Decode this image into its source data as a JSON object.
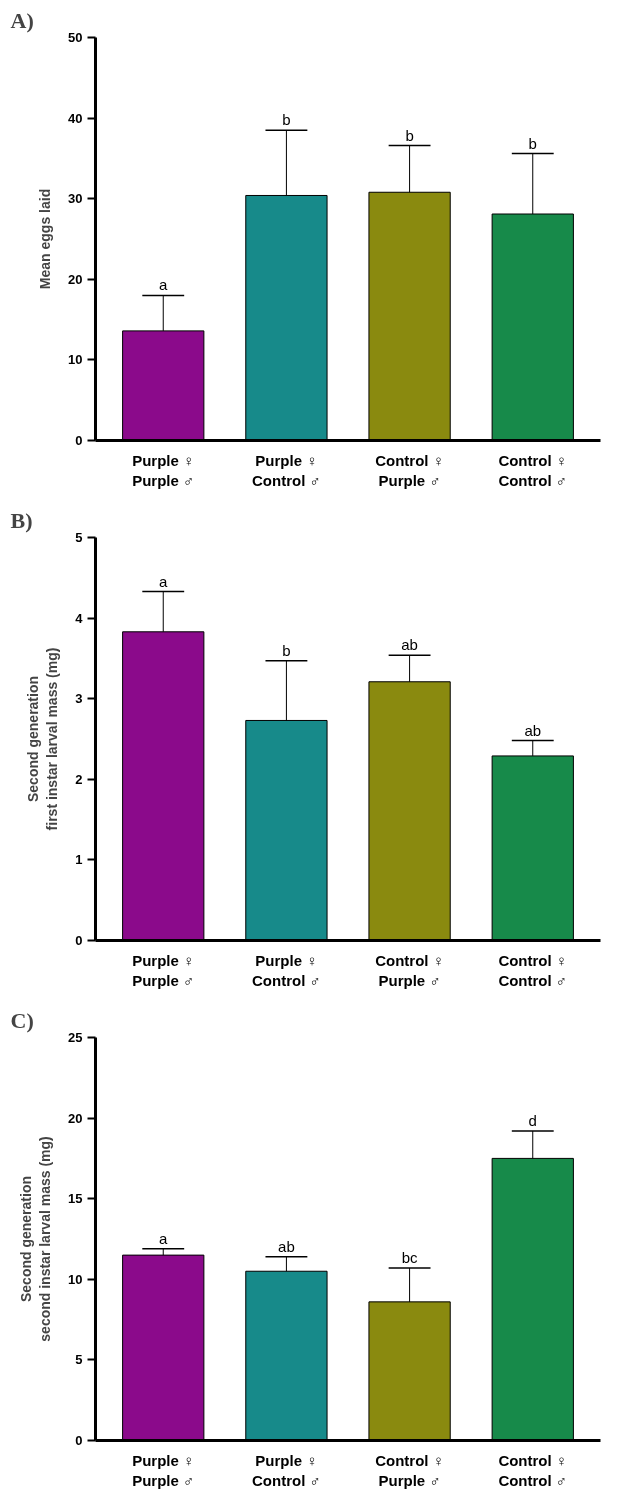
{
  "chart_data": [
    {
      "type": "bar",
      "title": "A)",
      "ylabel": "Mean eggs laid",
      "categories": [
        "Purple ♀\nPurple ♂",
        "Purple ♀\nControl ♂",
        "Control ♀\nPurple ♂",
        "Control ♀\nControl ♂"
      ],
      "values": [
        13.6,
        30.4,
        30.8,
        28.1
      ],
      "errors": [
        [
          13.6,
          18.0
        ],
        [
          30.4,
          38.5
        ],
        [
          30.8,
          36.6
        ],
        [
          28.1,
          35.6
        ]
      ],
      "colors": [
        "#8b0a8b",
        "#178a8a",
        "#8a8a0f",
        "#178a4a"
      ],
      "ylim": [
        0,
        50
      ],
      "yticks": [
        0,
        10,
        20,
        30,
        40,
        50
      ],
      "grid": false,
      "annotations": [
        {
          "text": "a",
          "x": "Purple ♀\nPurple ♂",
          "y": 18.0
        },
        {
          "text": "b",
          "x": "Purple ♀\nControl ♂",
          "y": 38.5
        },
        {
          "text": "b",
          "x": "Control ♀\nPurple ♂",
          "y": 36.6
        },
        {
          "text": "b",
          "x": "Control ♀\nControl ♂",
          "y": 35.6
        }
      ]
    },
    {
      "type": "bar",
      "title": "B)",
      "ylabel": "Second generation\nfirst instar larval mass (mg)",
      "categories": [
        "Purple ♀\nPurple ♂",
        "Purple ♀\nControl ♂",
        "Control ♀\nPurple ♂",
        "Control ♀\nControl ♂"
      ],
      "values": [
        3.83,
        2.73,
        3.21,
        2.29
      ],
      "errors": [
        [
          3.83,
          4.33
        ],
        [
          2.73,
          3.47
        ],
        [
          3.21,
          3.54
        ],
        [
          2.29,
          2.48
        ]
      ],
      "colors": [
        "#8b0a8b",
        "#178a8a",
        "#8a8a0f",
        "#178a4a"
      ],
      "ylim": [
        0,
        5
      ],
      "yticks": [
        0,
        1,
        2,
        3,
        4,
        5
      ],
      "grid": false,
      "annotations": [
        {
          "text": "a",
          "x": "Purple ♀\nPurple ♂",
          "y": 4.33
        },
        {
          "text": "b",
          "x": "Purple ♀\nControl ♂",
          "y": 3.47
        },
        {
          "text": "ab",
          "x": "Control ♀\nPurple ♂",
          "y": 3.54
        },
        {
          "text": "ab",
          "x": "Control ♀\nControl ♂",
          "y": 2.48
        }
      ]
    },
    {
      "type": "bar",
      "title": "C)",
      "ylabel": "Second generation\nsecond instar larval mass (mg)",
      "categories": [
        "Purple ♀\nPurple ♂",
        "Purple ♀\nControl ♂",
        "Control ♀\nPurple ♂",
        "Control ♀\nControl ♂"
      ],
      "values": [
        11.5,
        10.5,
        8.6,
        17.5
      ],
      "errors": [
        [
          11.5,
          11.9
        ],
        [
          10.5,
          11.4
        ],
        [
          8.6,
          10.7
        ],
        [
          17.5,
          19.2
        ]
      ],
      "colors": [
        "#8b0a8b",
        "#178a8a",
        "#8a8a0f",
        "#178a4a"
      ],
      "ylim": [
        0,
        25
      ],
      "yticks": [
        0,
        5,
        10,
        15,
        20,
        25
      ],
      "grid": false,
      "annotations": [
        {
          "text": "a",
          "x": "Purple ♀\nPurple ♂",
          "y": 11.9
        },
        {
          "text": "ab",
          "x": "Purple ♀\nControl ♂",
          "y": 11.4
        },
        {
          "text": "bc",
          "x": "Control ♀\nPurple ♂",
          "y": 10.7
        },
        {
          "text": "d",
          "x": "Control ♀\nControl ♂",
          "y": 19.2
        }
      ]
    }
  ]
}
